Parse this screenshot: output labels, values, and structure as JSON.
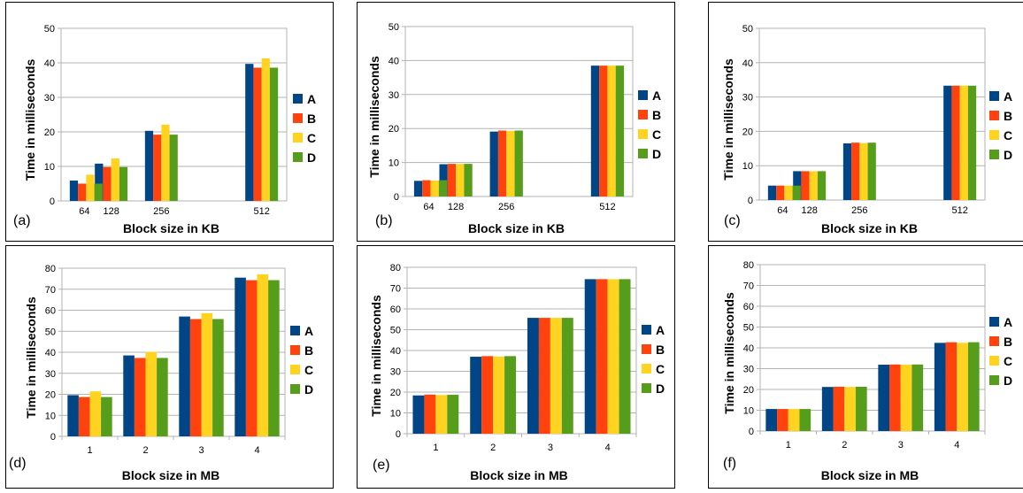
{
  "colors": {
    "A": "#004586",
    "B": "#ff420e",
    "C": "#ffd320",
    "D": "#579d1c"
  },
  "chart_data": [
    {
      "type": "bar",
      "panel_label": "(a)",
      "xlabel": "Block size in KB",
      "ylabel": "Time in milliseconds",
      "ylim": [
        0,
        50
      ],
      "yticks": [
        "0",
        "10",
        "20",
        "30",
        "40",
        "50"
      ],
      "x": [
        64,
        128,
        256,
        512
      ],
      "x_tick_labels": [
        "64",
        "128",
        "256",
        "512"
      ],
      "grid": true,
      "legend_position": "right",
      "series": [
        {
          "name": "A",
          "values": [
            5.9,
            10.8,
            20.3,
            39.7
          ]
        },
        {
          "name": "B",
          "values": [
            5.0,
            9.8,
            19.2,
            38.6
          ]
        },
        {
          "name": "C",
          "values": [
            7.6,
            12.3,
            22.1,
            41.3
          ]
        },
        {
          "name": "D",
          "values": [
            5.0,
            9.8,
            19.2,
            38.6
          ]
        }
      ]
    },
    {
      "type": "bar",
      "panel_label": "(b)",
      "xlabel": "Block size in KB",
      "ylabel": "Time in milliseconds",
      "ylim": [
        0,
        50
      ],
      "yticks": [
        "0",
        "10",
        "20",
        "30",
        "40",
        "50"
      ],
      "x": [
        64,
        128,
        256,
        512
      ],
      "x_tick_labels": [
        "64",
        "128",
        "256",
        "512"
      ],
      "grid": true,
      "legend_position": "right",
      "series": [
        {
          "name": "A",
          "values": [
            4.6,
            9.5,
            19.1,
            38.5
          ]
        },
        {
          "name": "B",
          "values": [
            4.8,
            9.6,
            19.4,
            38.5
          ]
        },
        {
          "name": "C",
          "values": [
            4.7,
            9.6,
            19.3,
            38.5
          ]
        },
        {
          "name": "D",
          "values": [
            4.8,
            9.6,
            19.4,
            38.5
          ]
        }
      ]
    },
    {
      "type": "bar",
      "panel_label": "(c)",
      "xlabel": "Block size in KB",
      "ylabel": "Time in milliseconds",
      "ylim": [
        0,
        50
      ],
      "yticks": [
        "0",
        "10",
        "20",
        "30",
        "40",
        "50"
      ],
      "x": [
        64,
        128,
        256,
        512
      ],
      "x_tick_labels": [
        "64",
        "128",
        "256",
        "512"
      ],
      "grid": true,
      "legend_position": "right",
      "series": [
        {
          "name": "A",
          "values": [
            4.2,
            8.4,
            16.5,
            33.3
          ]
        },
        {
          "name": "B",
          "values": [
            4.2,
            8.4,
            16.7,
            33.3
          ]
        },
        {
          "name": "C",
          "values": [
            4.2,
            8.4,
            16.6,
            33.3
          ]
        },
        {
          "name": "D",
          "values": [
            4.2,
            8.4,
            16.7,
            33.3
          ]
        }
      ]
    },
    {
      "type": "bar",
      "panel_label": "(d)",
      "xlabel": "Block size in MB",
      "ylabel": "Time in milliseconds",
      "ylim": [
        0,
        80
      ],
      "yticks": [
        "0",
        "10",
        "20",
        "30",
        "40",
        "50",
        "60",
        "70",
        "80"
      ],
      "x": [
        1,
        2,
        3,
        4
      ],
      "x_tick_labels": [
        "1",
        "2",
        "3",
        "4"
      ],
      "grid": true,
      "legend_position": "right",
      "series": [
        {
          "name": "A",
          "values": [
            19.6,
            38.5,
            57.0,
            75.5
          ]
        },
        {
          "name": "B",
          "values": [
            18.7,
            37.3,
            55.8,
            74.3
          ]
        },
        {
          "name": "C",
          "values": [
            21.4,
            40.2,
            58.6,
            77.1
          ]
        },
        {
          "name": "D",
          "values": [
            18.7,
            37.3,
            55.8,
            74.3
          ]
        }
      ]
    },
    {
      "type": "bar",
      "panel_label": "(e)",
      "xlabel": "Block size in MB",
      "ylabel": "Time in milliseconds",
      "ylim": [
        0,
        80
      ],
      "yticks": [
        "0",
        "10",
        "20",
        "30",
        "40",
        "50",
        "60",
        "70",
        "80"
      ],
      "x": [
        1,
        2,
        3,
        4
      ],
      "x_tick_labels": [
        "1",
        "2",
        "3",
        "4"
      ],
      "grid": true,
      "legend_position": "right",
      "series": [
        {
          "name": "A",
          "values": [
            18.4,
            37.0,
            55.7,
            74.3
          ]
        },
        {
          "name": "B",
          "values": [
            18.8,
            37.3,
            55.7,
            74.3
          ]
        },
        {
          "name": "C",
          "values": [
            18.6,
            37.1,
            55.7,
            74.3
          ]
        },
        {
          "name": "D",
          "values": [
            18.7,
            37.3,
            55.7,
            74.3
          ]
        }
      ]
    },
    {
      "type": "bar",
      "panel_label": "(f)",
      "xlabel": "Block size in MB",
      "ylabel": "Time in milliseconds",
      "ylim": [
        0,
        80
      ],
      "yticks": [
        "0",
        "10",
        "20",
        "30",
        "40",
        "50",
        "60",
        "70",
        "80"
      ],
      "x": [
        1,
        2,
        3,
        4
      ],
      "x_tick_labels": [
        "1",
        "2",
        "3",
        "4"
      ],
      "grid": true,
      "legend_position": "right",
      "series": [
        {
          "name": "A",
          "values": [
            10.6,
            21.2,
            31.9,
            42.4
          ]
        },
        {
          "name": "B",
          "values": [
            10.6,
            21.3,
            32.0,
            42.7
          ]
        },
        {
          "name": "C",
          "values": [
            10.6,
            21.2,
            31.9,
            42.4
          ]
        },
        {
          "name": "D",
          "values": [
            10.6,
            21.3,
            32.0,
            42.7
          ]
        }
      ]
    }
  ]
}
